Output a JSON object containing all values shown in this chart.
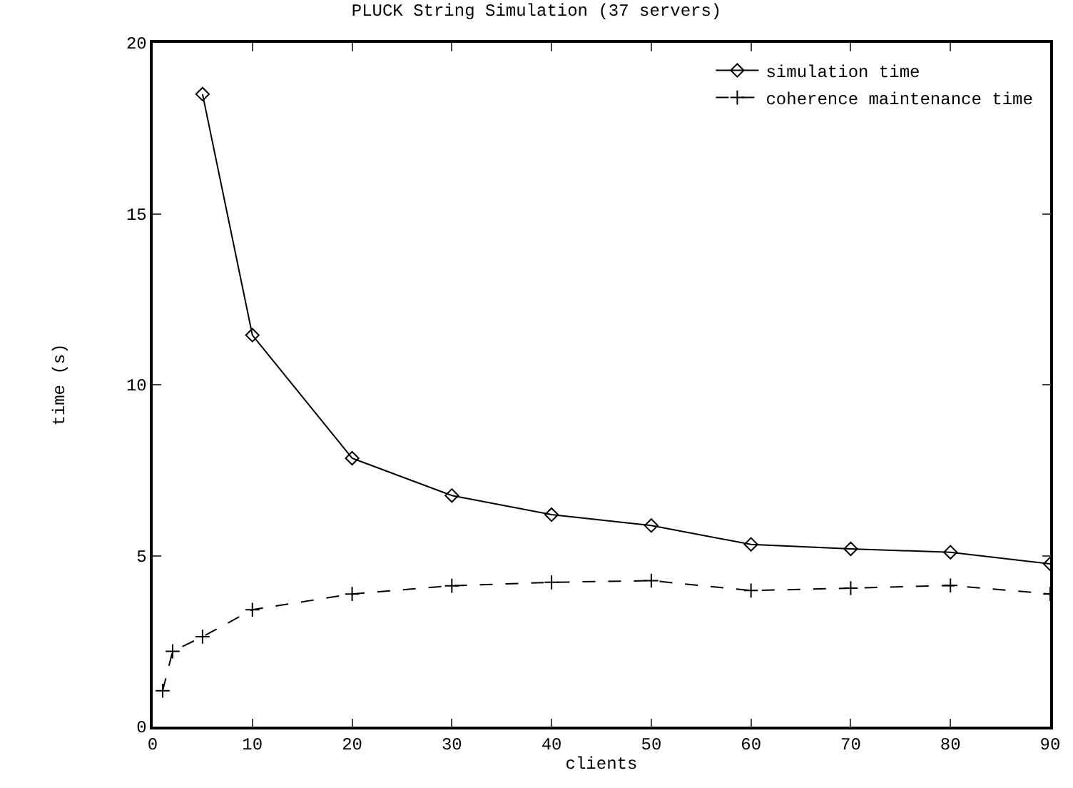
{
  "chart_data": {
    "type": "line",
    "title": "PLUCK String Simulation (37 servers)",
    "xlabel": "clients",
    "ylabel": "time (s)",
    "xlim": [
      0,
      90
    ],
    "xticks": [
      0,
      10,
      20,
      30,
      40,
      50,
      60,
      70,
      80,
      90
    ],
    "ylim": [
      0,
      20
    ],
    "yticks": [
      0,
      5,
      10,
      15,
      20
    ],
    "legend": "top right",
    "series": [
      {
        "name": "simulation time",
        "color": "#000000",
        "marker": "diamond",
        "line_style": "solid",
        "x": [
          5,
          10,
          20,
          30,
          40,
          50,
          60,
          70,
          80,
          90
        ],
        "values": [
          18.5,
          11.45,
          7.85,
          6.76,
          6.2,
          5.88,
          5.33,
          5.2,
          5.1,
          4.76
        ]
      },
      {
        "name": "coherence maintenance time",
        "color": "#000000",
        "marker": "cross",
        "line_style": "dashed",
        "x": [
          1,
          2,
          5,
          10,
          20,
          30,
          40,
          50,
          60,
          70,
          80,
          90
        ],
        "values": [
          1.05,
          2.2,
          2.63,
          3.42,
          3.88,
          4.12,
          4.22,
          4.27,
          3.98,
          4.05,
          4.13,
          3.88
        ]
      }
    ]
  }
}
